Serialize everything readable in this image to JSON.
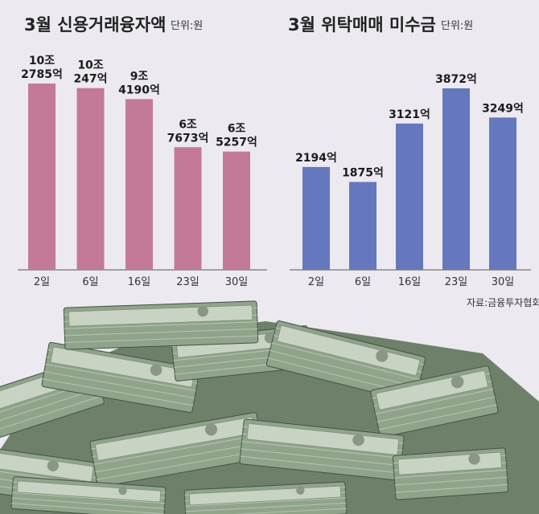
{
  "chart_data": [
    {
      "type": "bar",
      "title": "3월 신용거래융자액",
      "unit": "단위:원",
      "categories": [
        "2일",
        "6일",
        "16일",
        "23일",
        "30일"
      ],
      "values": [
        102785,
        100247,
        94190,
        67673,
        65257
      ],
      "value_labels": [
        [
          "10조",
          "2785억"
        ],
        [
          "10조",
          "247억"
        ],
        [
          "9조",
          "4190억"
        ],
        [
          "6조",
          "7673억"
        ],
        [
          "6조",
          "5257억"
        ]
      ],
      "color": "#c27a98",
      "ylim": [
        0,
        102785
      ],
      "grid": false
    },
    {
      "type": "bar",
      "title": "3월 위탁매매 미수금",
      "unit": "단위:원",
      "categories": [
        "2일",
        "6일",
        "16일",
        "23일",
        "30일"
      ],
      "values": [
        2194,
        1875,
        3121,
        3872,
        3249
      ],
      "value_labels": [
        [
          "2194억"
        ],
        [
          "1875억"
        ],
        [
          "3121억"
        ],
        [
          "3872억"
        ],
        [
          "3249억"
        ]
      ],
      "color": "#6577bd",
      "ylim": [
        0,
        3872
      ],
      "grid": false
    }
  ],
  "source": "자료:금융투자협회",
  "colors": {
    "bg": "#ece9f1",
    "money_green": "#8fa48a",
    "money_dark": "#3f5440"
  },
  "illustration": "stacks-of-10000-won-banknotes"
}
